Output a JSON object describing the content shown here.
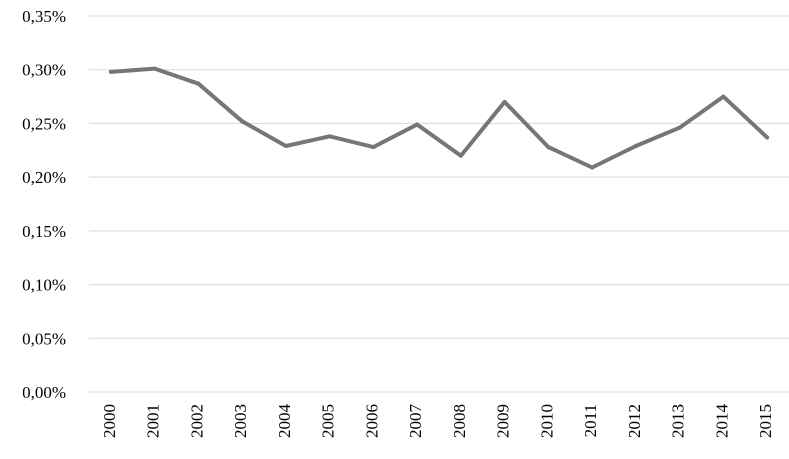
{
  "chart_data": {
    "type": "line",
    "title": "",
    "xlabel": "",
    "ylabel": "",
    "categories": [
      "2000",
      "2001",
      "2002",
      "2003",
      "2004",
      "2005",
      "2006",
      "2007",
      "2008",
      "2009",
      "2010",
      "2011",
      "2012",
      "2013",
      "2014",
      "2015"
    ],
    "series": [
      {
        "values": [
          0.298,
          0.301,
          0.287,
          0.252,
          0.229,
          0.238,
          0.228,
          0.249,
          0.22,
          0.27,
          0.228,
          0.209,
          0.229,
          0.246,
          0.275,
          0.237
        ],
        "color": "#767676"
      }
    ],
    "ylim": [
      0,
      0.35
    ],
    "yticks": [
      0,
      0.05,
      0.1,
      0.15,
      0.2,
      0.25,
      0.3,
      0.35
    ],
    "ytick_labels": [
      "0,00%",
      "0,05%",
      "0,10%",
      "0,15%",
      "0,20%",
      "0,25%",
      "0,30%",
      "0,35%"
    ],
    "y_unit": "%",
    "grid": true,
    "legend": "none",
    "grid_color": "#d9d9d9"
  }
}
